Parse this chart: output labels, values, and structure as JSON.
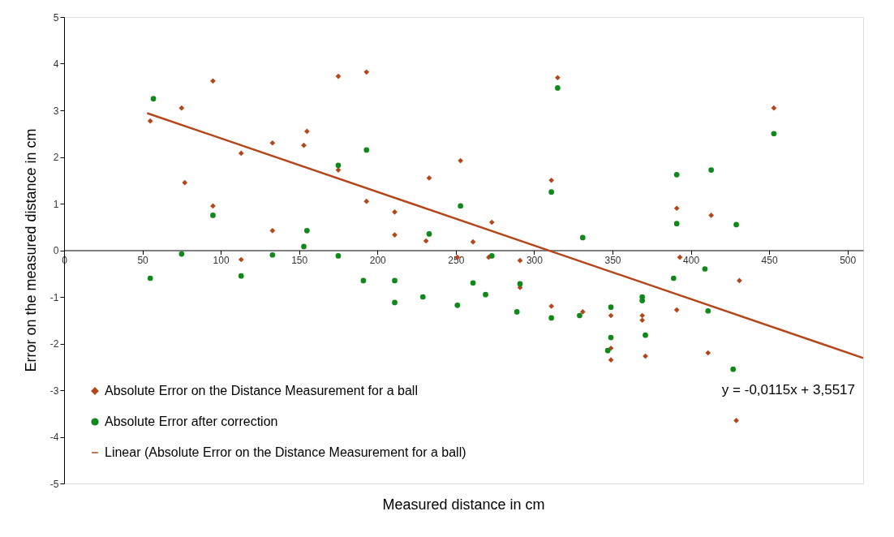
{
  "chart_data": {
    "type": "scatter",
    "xlabel": "Measured distance in cm",
    "ylabel": "Error on the measured distance in cm",
    "xlim": [
      0,
      510
    ],
    "xticks": [
      0,
      50,
      100,
      150,
      200,
      250,
      300,
      350,
      400,
      450,
      500
    ],
    "ylim": [
      -5,
      5
    ],
    "yticks": [
      -5,
      -4,
      -3,
      -2,
      -1,
      0,
      1,
      2,
      3,
      4,
      5
    ],
    "grid": false,
    "legend": "bottom left",
    "annotations": [
      "y = -0,0115x + 3,5517"
    ],
    "series": [
      {
        "name": "Absolute Error on the Distance Measurement for a ball",
        "marker": "diamond",
        "color": "#b5461a",
        "x": [
          55,
          75,
          77,
          95,
          95,
          113,
          113,
          133,
          133,
          153,
          155,
          175,
          175,
          193,
          193,
          211,
          211,
          231,
          233,
          251,
          253,
          261,
          271,
          273,
          291,
          291,
          311,
          311,
          315,
          331,
          349,
          349,
          349,
          369,
          369,
          371,
          391,
          391,
          393,
          411,
          413,
          431,
          429,
          453
        ],
        "values": [
          2.77,
          3.05,
          1.45,
          3.63,
          0.95,
          2.08,
          -0.2,
          2.3,
          0.42,
          2.25,
          2.55,
          3.73,
          1.72,
          3.82,
          1.05,
          0.82,
          0.33,
          0.2,
          1.55,
          -0.15,
          1.92,
          0.18,
          -0.15,
          0.6,
          -0.22,
          -0.8,
          1.5,
          -1.2,
          3.7,
          -1.32,
          -1.4,
          -2.1,
          -2.35,
          -1.4,
          -1.5,
          -2.27,
          -1.28,
          0.9,
          -0.15,
          -2.2,
          0.75,
          -0.65,
          -3.65,
          3.05
        ]
      },
      {
        "name": "Absolute Error after correction",
        "marker": "circle",
        "color": "#10891a",
        "x": [
          57,
          55,
          75,
          95,
          113,
          133,
          153,
          155,
          175,
          175,
          193,
          191,
          211,
          211,
          229,
          233,
          251,
          253,
          261,
          273,
          269,
          291,
          289,
          311,
          311,
          315,
          329,
          331,
          349,
          349,
          347,
          369,
          369,
          371,
          389,
          391,
          391,
          409,
          411,
          413,
          429,
          427,
          453
        ],
        "values": [
          3.25,
          -0.6,
          -0.08,
          0.75,
          -0.55,
          -0.1,
          0.08,
          0.42,
          -0.12,
          1.82,
          2.15,
          -0.65,
          -0.65,
          -1.12,
          -1.0,
          0.35,
          -1.18,
          0.95,
          -0.7,
          -0.12,
          -0.95,
          -0.72,
          -1.32,
          1.25,
          -1.45,
          3.48,
          -1.4,
          0.27,
          -1.22,
          -1.87,
          -2.15,
          -1.0,
          -1.08,
          -1.82,
          -0.6,
          1.62,
          0.57,
          -0.4,
          -1.3,
          1.72,
          0.55,
          -2.55,
          2.5
        ]
      },
      {
        "name": "Linear (Absolute Error on the Distance Measurement for a ball)",
        "type": "line",
        "marker": "none",
        "line_style": "solid",
        "color": "#b5461a",
        "x": [
          53,
          510
        ],
        "values": [
          2.94,
          -2.31
        ]
      }
    ]
  }
}
